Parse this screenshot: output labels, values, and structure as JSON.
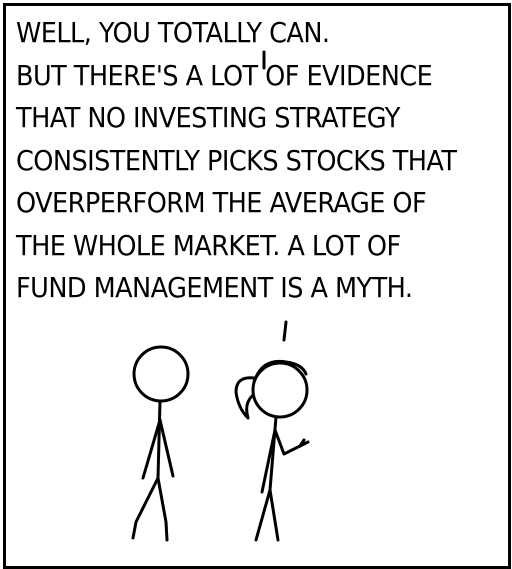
{
  "comic": {
    "lines_first": [
      "WELL, YOU TOTALLY CAN."
    ],
    "lines_second": [
      "BUT THERE'S A LOT OF EVIDENCE",
      "THAT NO INVESTING STRATEGY",
      "CONSISTENTLY PICKS STOCKS THAT",
      "OVERPERFORM THE AVERAGE OF",
      "THE WHOLE MARKET. A LOT OF",
      "FUND MANAGEMENT IS A MYTH."
    ]
  }
}
